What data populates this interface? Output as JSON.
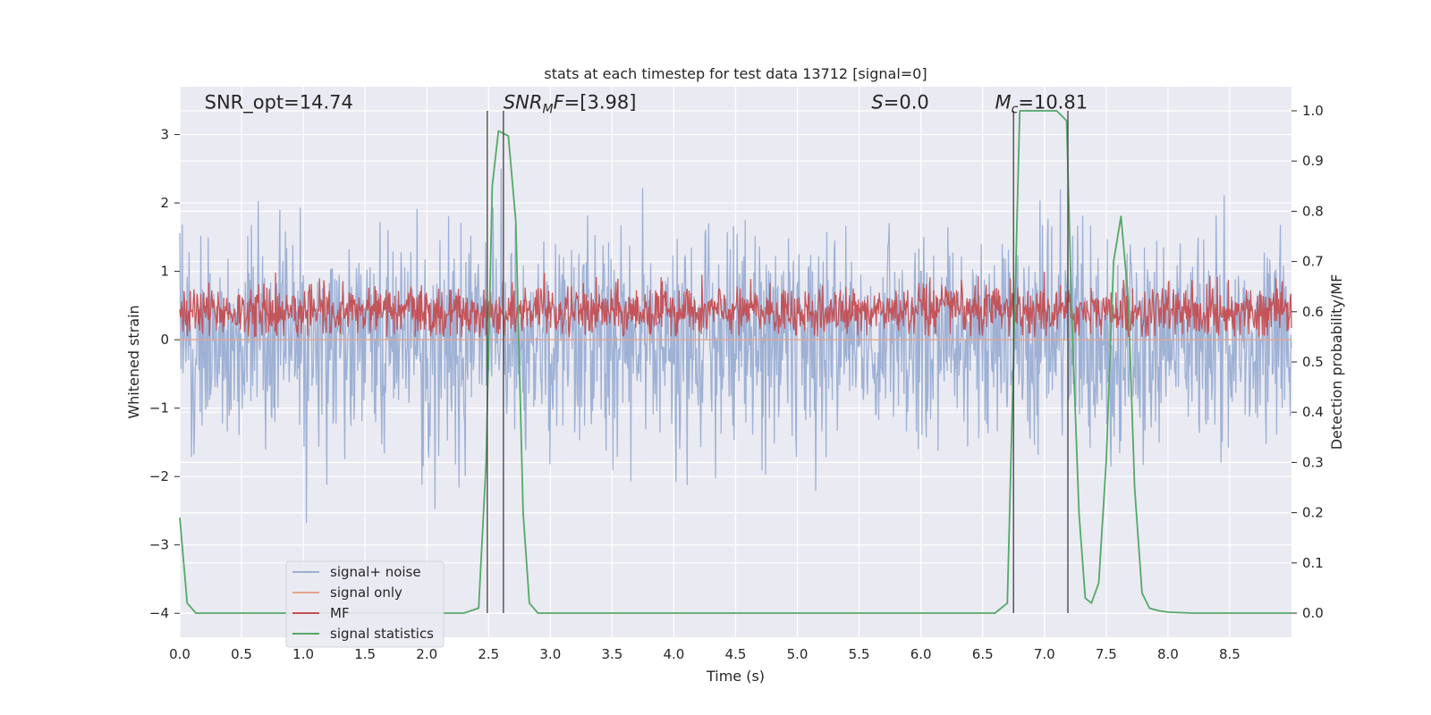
{
  "chart_data": {
    "type": "line",
    "title": "stats at each timestep for test data 13712 [signal=0]",
    "xlabel": "Time (s)",
    "ylabel_left": "Whitened strain",
    "ylabel_right": "Detection probability/MF",
    "xlim": [
      0.0,
      9.0
    ],
    "ylim_left": [
      -4.35,
      3.7
    ],
    "ylim_right": [
      -0.048,
      1.048
    ],
    "x_ticks": [
      "0.0",
      "0.5",
      "1.0",
      "1.5",
      "2.0",
      "2.5",
      "3.0",
      "3.5",
      "4.0",
      "4.5",
      "5.0",
      "5.5",
      "6.0",
      "6.5",
      "7.0",
      "7.5",
      "8.0",
      "8.5"
    ],
    "y_ticks_left": [
      "3",
      "2",
      "1",
      "0",
      "−1",
      "−2",
      "−3",
      "−4"
    ],
    "y_ticks_right": [
      "1.0",
      "0.9",
      "0.8",
      "0.7",
      "0.6",
      "0.5",
      "0.4",
      "0.3",
      "0.2",
      "0.1",
      "0.0"
    ],
    "grid": true,
    "legend_position": "lower-left",
    "annotations": [
      {
        "text": "SNR_opt=14.74",
        "x": 0.2,
        "y": 3.38
      },
      {
        "text": "SNR_MF=[3.98]",
        "x": 2.62,
        "y": 3.38
      },
      {
        "text": "S=0.0",
        "x": 5.6,
        "y": 3.38
      },
      {
        "text": "M_c=10.81",
        "x": 6.6,
        "y": 3.38
      }
    ],
    "vertical_lines": [
      2.49,
      2.62,
      6.75,
      7.19
    ],
    "series": [
      {
        "name": "signal+ noise",
        "color": "#9aaed3",
        "kind": "noise",
        "std": 0.78,
        "peak_max": 3.3,
        "peak_min": -3.9
      },
      {
        "name": "signal only",
        "color": "#e8a48d",
        "kind": "flat",
        "value": 0.0
      },
      {
        "name": "MF",
        "color": "#c44e52",
        "kind": "noise",
        "axis": "right",
        "center": 0.6,
        "std": 0.025,
        "peak_max": 0.68,
        "peak_min": 0.55
      },
      {
        "name": "signal statistics",
        "color": "#55a868",
        "kind": "line",
        "axis": "right",
        "x": [
          0.0,
          0.06,
          0.13,
          0.25,
          1.0,
          2.0,
          2.3,
          2.42,
          2.48,
          2.53,
          2.58,
          2.66,
          2.72,
          2.78,
          2.83,
          2.9,
          3.5,
          5.0,
          6.6,
          6.7,
          6.8,
          6.85,
          6.95,
          7.1,
          7.18,
          7.22,
          7.28,
          7.33,
          7.38,
          7.44,
          7.5,
          7.56,
          7.62,
          7.68,
          7.73,
          7.79,
          7.85,
          7.92,
          8.0,
          8.2,
          9.0
        ],
        "y": [
          0.19,
          0.02,
          0.0,
          0.0,
          0.0,
          0.0,
          0.0,
          0.01,
          0.3,
          0.85,
          0.96,
          0.95,
          0.78,
          0.2,
          0.02,
          0.0,
          0.0,
          0.0,
          0.0,
          0.02,
          1.0,
          1.0,
          1.0,
          1.0,
          0.98,
          0.6,
          0.2,
          0.03,
          0.02,
          0.06,
          0.3,
          0.7,
          0.79,
          0.62,
          0.25,
          0.04,
          0.01,
          0.005,
          0.002,
          0.0,
          0.0
        ]
      }
    ]
  }
}
